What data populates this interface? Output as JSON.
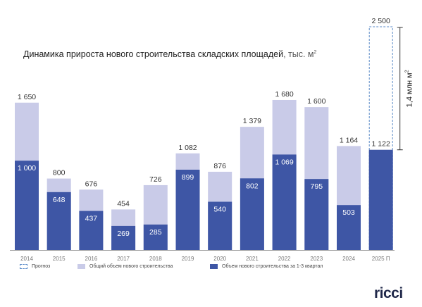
{
  "title": {
    "main": "Динамика прироста нового строительства складских площадей",
    "unit_prefix": ", тыс. м",
    "unit_sup": "2"
  },
  "colors": {
    "total": "#c9cbe8",
    "q13": "#3e56a5",
    "forecast_border": "#5a8ac8",
    "axis": "#9a9a9a",
    "label_dark": "#333333",
    "label_light": "#ffffff",
    "year_label": "#777777"
  },
  "legend": [
    {
      "key": "forecast",
      "label": "Прогноз"
    },
    {
      "key": "total",
      "label": "Общий объем нового строительства"
    },
    {
      "key": "q13",
      "label": "Объем нового строительства за 1-3 квартал"
    }
  ],
  "annotation": {
    "text": "1,4 млн м",
    "sup": "2"
  },
  "logo": "ricci",
  "chart_data": {
    "type": "bar",
    "stacking": "overlay",
    "categories": [
      "2014",
      "2015",
      "2016",
      "2017",
      "2018",
      "2019",
      "2020",
      "2021",
      "2022",
      "2023",
      "2024",
      "2025 П"
    ],
    "series": [
      {
        "key": "total",
        "name": "Общий объем нового строительства",
        "values": [
          1650,
          800,
          676,
          454,
          726,
          1082,
          876,
          1379,
          1680,
          1600,
          1164,
          2500
        ],
        "labels": [
          "1 650",
          "800",
          "676",
          "454",
          "726",
          "1 082",
          "876",
          "1 379",
          "1 680",
          "1 600",
          "1 164",
          "2 500"
        ]
      },
      {
        "key": "q13",
        "name": "Объем нового строительства за 1-3 квартал",
        "values": [
          1000,
          648,
          437,
          269,
          285,
          899,
          540,
          802,
          1069,
          795,
          503,
          1122
        ],
        "labels": [
          "1 000",
          "648",
          "437",
          "269",
          "285",
          "899",
          "540",
          "802",
          "1 069",
          "795",
          "503",
          "1 122"
        ]
      }
    ],
    "forecast_categories": [
      "2025 П"
    ],
    "ylim": [
      0,
      2500
    ],
    "grid": false,
    "legend_position": "bottom"
  }
}
